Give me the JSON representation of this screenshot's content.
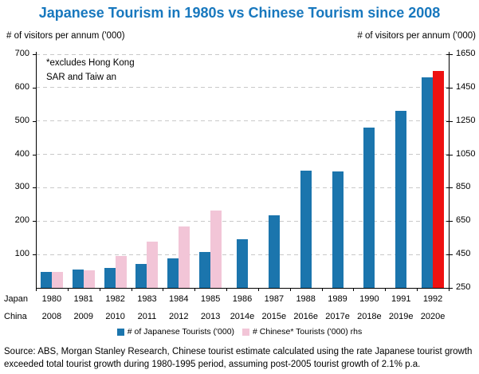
{
  "header": {
    "title": "Japanese Tourism in 1980s vs Chinese Tourism since 2008",
    "left_axis_title": "# of visitors per annum ('000)",
    "right_axis_title": "# of visitors per annum ('000)"
  },
  "colors": {
    "title": "#1878be",
    "japanese_bar": "#1b75ad",
    "chinese_bar": "#f2c5d7",
    "highlight_bar": "#ee1111",
    "gridline": "#c9c9c9",
    "axis": "#000000"
  },
  "chart_data": {
    "type": "bar",
    "title": "Japanese Tourism in 1980s vs Chinese Tourism since 2008",
    "annotation": [
      "*excludes Hong Kong",
      "SAR and Taiw an"
    ],
    "grid": "dashed-horizontal",
    "legend_position": "bottom",
    "x_rows": [
      {
        "label": "Japan",
        "years": [
          "1980",
          "1981",
          "1982",
          "1983",
          "1984",
          "1985",
          "1986",
          "1987",
          "1988",
          "1989",
          "1990",
          "1991",
          "1992"
        ]
      },
      {
        "label": "China",
        "years": [
          "2008",
          "2009",
          "2010",
          "2011",
          "2012",
          "2013",
          "2014e",
          "2015e",
          "2016e",
          "2017e",
          "2018e",
          "2019e",
          "2020e"
        ]
      }
    ],
    "left_axis": {
      "label": "# of visitors per annum ('000)",
      "min": 0,
      "max": 700,
      "ticks": [
        100,
        200,
        300,
        400,
        500,
        600,
        700
      ]
    },
    "right_axis": {
      "label": "# of visitors per annum ('000)",
      "min": 250,
      "max": 1650,
      "ticks": [
        250,
        450,
        650,
        850,
        1050,
        1250,
        1450,
        1650
      ]
    },
    "series": [
      {
        "name": "# of Japanese Tourists ('000)",
        "axis": "left",
        "color": "#1b75ad",
        "values": [
          48,
          55,
          60,
          72,
          88,
          108,
          145,
          217,
          352,
          350,
          480,
          530,
          630
        ]
      },
      {
        "name": "# Chinese* Tourists ('000) rhs",
        "axis": "right",
        "color": "#f2c5d7",
        "highlight_color": "#ee1111",
        "highlight_index": 12,
        "values": [
          345,
          355,
          440,
          525,
          620,
          715,
          null,
          null,
          null,
          null,
          null,
          null,
          1550
        ]
      }
    ]
  },
  "footer": {
    "source": "Source: ABS, Morgan Stanley Research, Chinese tourist estimate calculated using the rate Japanese tourist growth exceeded total tourist growth during 1980-1995 period, assuming post-2005 tourist growth of 2.1% p.a."
  }
}
